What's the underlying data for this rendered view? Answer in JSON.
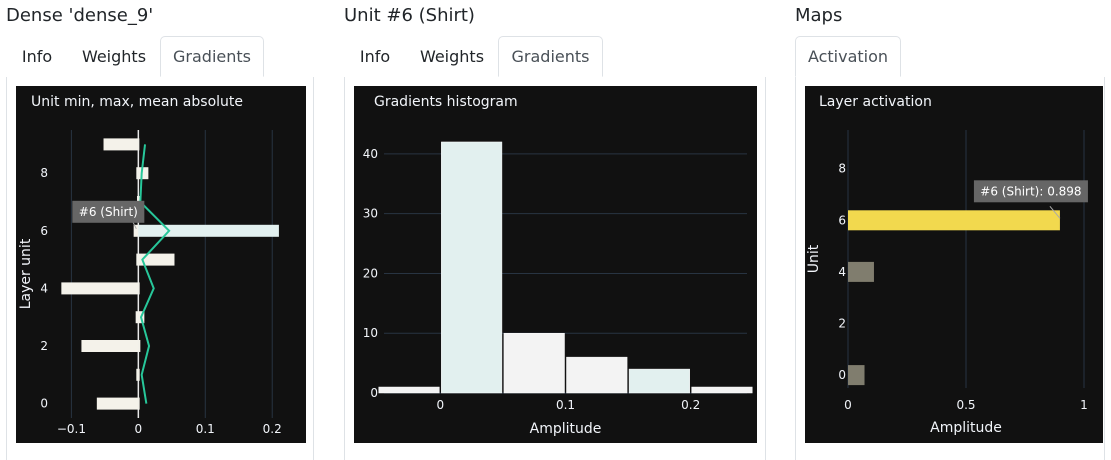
{
  "panels": [
    {
      "title": "Dense 'dense_9'",
      "tabs": [
        {
          "label": "Info",
          "active": false
        },
        {
          "label": "Weights",
          "active": false
        },
        {
          "label": "Gradients",
          "active": true
        }
      ]
    },
    {
      "title": "Unit #6 (Shirt)",
      "tabs": [
        {
          "label": "Info",
          "active": false
        },
        {
          "label": "Weights",
          "active": false
        },
        {
          "label": "Gradients",
          "active": true
        }
      ]
    },
    {
      "title": "Maps",
      "tabs": [
        {
          "label": "Activation",
          "active": true
        }
      ]
    }
  ],
  "colors": {
    "plot_bg": "#111111",
    "grid": "#283442",
    "text": "#f2f5fa",
    "bar_light": "#f4f2ea",
    "bar_highlight": "#e2f0ef",
    "bar_white": "#f3f3f3",
    "mean_line": "#27c79a",
    "activation_selected": "#f2d94e",
    "activation_other": "#807d6e",
    "tooltip_bg": "#666666"
  },
  "chart_data": [
    {
      "type": "bar",
      "orientation": "horizontal",
      "title": "Unit min, max, mean absolute",
      "xlabel": "",
      "ylabel": "Layer unit",
      "xlim": [
        -0.12,
        0.24
      ],
      "ylim": [
        -0.5,
        9.5
      ],
      "xticks": [
        -0.1,
        0,
        0.1,
        0.2
      ],
      "xtick_labels": [
        "−0.1",
        "0",
        "0.1",
        "0.2"
      ],
      "yticks": [
        0,
        2,
        4,
        6,
        8
      ],
      "units": [
        0,
        1,
        2,
        3,
        4,
        5,
        6,
        7,
        8,
        9
      ],
      "series": [
        {
          "name": "min",
          "values": [
            -0.062,
            -0.003,
            -0.085,
            -0.004,
            -0.115,
            -0.003,
            -0.007,
            -0.002,
            -0.003,
            -0.052
          ]
        },
        {
          "name": "max",
          "values": [
            0.002,
            0.002,
            0.003,
            0.009,
            0.002,
            0.054,
            0.21,
            0.003,
            0.015,
            0.001
          ]
        },
        {
          "name": "mean absolute",
          "values": [
            0.012,
            0.005,
            0.016,
            0.004,
            0.023,
            0.006,
            0.046,
            0.003,
            0.005,
            0.01
          ]
        }
      ],
      "highlight_unit": 6,
      "tooltip": "#6 (Shirt)",
      "grid": true
    },
    {
      "type": "bar",
      "title": "Gradients histogram",
      "xlabel": "Amplitude",
      "ylabel": "",
      "xlim": [
        -0.045,
        0.245
      ],
      "ylim": [
        0,
        44
      ],
      "xticks": [
        0,
        0.1,
        0.2
      ],
      "xtick_labels": [
        "0",
        "0.1",
        "0.2"
      ],
      "yticks": [
        0,
        10,
        20,
        30,
        40
      ],
      "bin_width": 0.05,
      "x": [
        -0.025,
        0.025,
        0.075,
        0.125,
        0.175,
        0.225
      ],
      "values": [
        1,
        42,
        10,
        6,
        4,
        1
      ],
      "highlight_bin": 4,
      "grid": true
    },
    {
      "type": "bar",
      "orientation": "horizontal",
      "title": "Layer activation",
      "xlabel": "Amplitude",
      "ylabel": "Unit",
      "xlim": [
        0,
        1
      ],
      "ylim": [
        -0.5,
        9.5
      ],
      "xticks": [
        0,
        0.5,
        1
      ],
      "xtick_labels": [
        "0",
        "0.5",
        "1"
      ],
      "yticks": [
        0,
        2,
        4,
        6,
        8
      ],
      "units": [
        0,
        1,
        2,
        3,
        4,
        5,
        6,
        7,
        8,
        9
      ],
      "values": [
        0.07,
        0,
        0,
        0,
        0.11,
        0,
        0.898,
        0,
        0,
        0
      ],
      "selected_unit": 6,
      "tooltip": "#6 (Shirt): 0.898",
      "grid": true
    }
  ]
}
